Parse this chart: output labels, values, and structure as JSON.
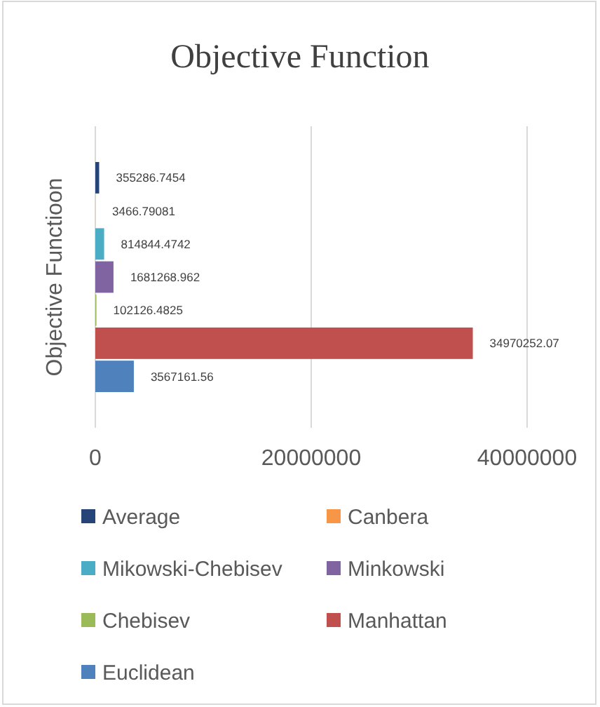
{
  "chart_data": {
    "type": "bar",
    "orientation": "horizontal",
    "title": "Objective Function",
    "ylabel": "Objective Functioon",
    "categories": [
      null
    ],
    "series": [
      {
        "name": "Average",
        "color": "#264478",
        "values": [
          355286.7454
        ]
      },
      {
        "name": "Canbera",
        "color": "#f79646",
        "values": [
          3466.79081
        ]
      },
      {
        "name": "Mikowski-Chebisev",
        "color": "#4bacc6",
        "values": [
          814844.4742
        ]
      },
      {
        "name": "Minkowski",
        "color": "#8064a2",
        "values": [
          1681268.962
        ]
      },
      {
        "name": "Chebisev",
        "color": "#9bbb59",
        "values": [
          102126.4825
        ]
      },
      {
        "name": "Manhattan",
        "color": "#c0504d",
        "values": [
          34970252.07
        ]
      },
      {
        "name": "Euclidean",
        "color": "#4f81bd",
        "values": [
          3567161.56
        ]
      }
    ],
    "xlim": [
      0,
      40000000
    ],
    "xticks": [
      0,
      20000000,
      40000000
    ],
    "grid": "x",
    "data_labels": true,
    "legend": "bottom"
  }
}
